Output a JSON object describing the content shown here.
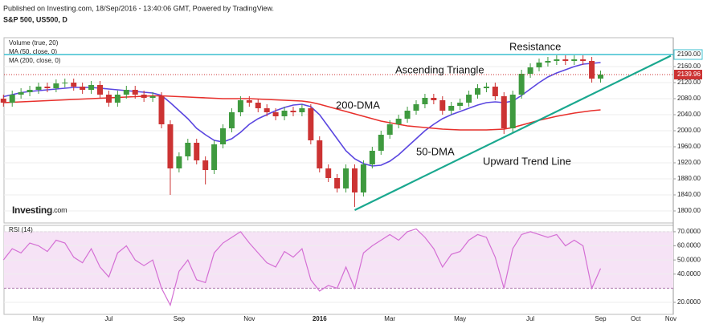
{
  "header": {
    "published": "Published on Investing.com, 18/Sep/2016 - 13:40:06 GMT, Powered by TradingView.",
    "symbol": "S&P 500, US500, D"
  },
  "logo": {
    "name": "Investing",
    "suffix": ".com"
  },
  "chart_data": [
    {
      "type": "candlestick",
      "indicators_label": "Volume (true, 20)",
      "up_color": "#3f9a3f",
      "down_color": "#cc3333",
      "open": [
        2080,
        2070,
        2090,
        2096,
        2102,
        2110,
        2106,
        2118,
        2120,
        2110,
        2102,
        2114,
        2090,
        2070,
        2090,
        2102,
        2090,
        2082,
        2086,
        2016,
        1906,
        1936,
        1970,
        1926,
        1902,
        1966,
        2006,
        2046,
        2076,
        2070,
        2056,
        2046,
        2036,
        2050,
        2046,
        2056,
        1976,
        1906,
        1882,
        1856,
        1906,
        1846,
        1916,
        1950,
        1990,
        2016,
        2030,
        2050,
        2066,
        2082,
        2076,
        2050,
        2062,
        2070,
        2090,
        2106,
        2110,
        2086,
        2006,
        2090,
        2142,
        2158,
        2170,
        2174,
        2178,
        2174,
        2178,
        2174,
        2130
      ],
      "high": [
        2090,
        2100,
        2106,
        2112,
        2120,
        2120,
        2128,
        2130,
        2130,
        2120,
        2124,
        2124,
        2100,
        2100,
        2112,
        2112,
        2100,
        2096,
        2096,
        2026,
        1946,
        1980,
        1980,
        1936,
        1976,
        2016,
        2056,
        2086,
        2086,
        2080,
        2066,
        2056,
        2060,
        2060,
        2066,
        2066,
        1986,
        1916,
        1892,
        1916,
        1916,
        1926,
        1960,
        2000,
        2026,
        2040,
        2060,
        2076,
        2092,
        2092,
        2086,
        2072,
        2080,
        2100,
        2116,
        2120,
        2120,
        2096,
        2100,
        2152,
        2168,
        2180,
        2184,
        2188,
        2188,
        2188,
        2188,
        2184,
        2150
      ],
      "low": [
        2060,
        2060,
        2080,
        2086,
        2092,
        2096,
        2096,
        2108,
        2100,
        2092,
        2092,
        2080,
        2060,
        2060,
        2080,
        2080,
        2072,
        2072,
        2006,
        1840,
        1896,
        1926,
        1916,
        1866,
        1892,
        1956,
        1996,
        2036,
        2060,
        2046,
        2036,
        2026,
        2026,
        2036,
        2036,
        1966,
        1896,
        1872,
        1846,
        1846,
        1810,
        1836,
        1906,
        1940,
        1980,
        2006,
        2020,
        2040,
        2056,
        2066,
        2040,
        2040,
        2052,
        2060,
        2080,
        2096,
        2076,
        1992,
        1996,
        2080,
        2132,
        2148,
        2160,
        2164,
        2164,
        2164,
        2164,
        2120,
        2120
      ],
      "close": [
        2070,
        2090,
        2096,
        2102,
        2110,
        2106,
        2118,
        2120,
        2110,
        2102,
        2114,
        2090,
        2070,
        2090,
        2102,
        2090,
        2082,
        2086,
        2016,
        1906,
        1936,
        1970,
        1926,
        1902,
        1966,
        2006,
        2046,
        2076,
        2070,
        2056,
        2046,
        2036,
        2050,
        2046,
        2056,
        1976,
        1906,
        1882,
        1856,
        1906,
        1846,
        1916,
        1950,
        1990,
        2016,
        2030,
        2050,
        2066,
        2082,
        2076,
        2050,
        2062,
        2070,
        2090,
        2106,
        2110,
        2086,
        2006,
        2090,
        2142,
        2158,
        2170,
        2174,
        2178,
        2174,
        2178,
        2174,
        2130,
        2139.96
      ],
      "series": [
        {
          "name": "MA (50, close, 0)",
          "color": "#5b47e0",
          "values": [
            2085,
            2090,
            2095,
            2098,
            2100,
            2102,
            2104,
            2106,
            2108,
            2108,
            2108,
            2106,
            2104,
            2102,
            2100,
            2098,
            2096,
            2094,
            2088,
            2070,
            2050,
            2030,
            2006,
            1990,
            1976,
            1972,
            1980,
            1996,
            2016,
            2030,
            2040,
            2050,
            2058,
            2064,
            2066,
            2060,
            2040,
            2010,
            1980,
            1950,
            1930,
            1918,
            1912,
            1914,
            1924,
            1940,
            1960,
            1980,
            2000,
            2016,
            2030,
            2040,
            2048,
            2056,
            2064,
            2070,
            2072,
            2070,
            2074,
            2088,
            2104,
            2120,
            2134,
            2144,
            2152,
            2160,
            2166,
            2168,
            2170
          ]
        },
        {
          "name": "MA (200, close, 0)",
          "color": "#e8302c",
          "values": [
            2070,
            2071,
            2072,
            2073,
            2074,
            2075,
            2076,
            2077,
            2078,
            2079,
            2080,
            2081,
            2082,
            2083,
            2084,
            2085,
            2086,
            2087,
            2087,
            2086,
            2085,
            2084,
            2083,
            2082,
            2081,
            2080,
            2080,
            2080,
            2080,
            2079,
            2078,
            2077,
            2076,
            2075,
            2074,
            2071,
            2066,
            2060,
            2054,
            2048,
            2042,
            2036,
            2030,
            2024,
            2020,
            2016,
            2012,
            2010,
            2008,
            2006,
            2004,
            2003,
            2002,
            2002,
            2002,
            2002,
            2003,
            2004,
            2008,
            2014,
            2020,
            2026,
            2031,
            2036,
            2040,
            2044,
            2047,
            2050,
            2052
          ]
        }
      ],
      "ylim": [
        1770,
        2232
      ],
      "yticks": [
        {
          "value": 1800,
          "label": "1800.00"
        },
        {
          "value": 1840,
          "label": "1840.00"
        },
        {
          "value": 1880,
          "label": "1880.00"
        },
        {
          "value": 1920,
          "label": "1920.00"
        },
        {
          "value": 1960,
          "label": "1960.00"
        },
        {
          "value": 2000,
          "label": "2000.00"
        },
        {
          "value": 2040,
          "label": "2040.00"
        },
        {
          "value": 2080,
          "label": "2080.00"
        },
        {
          "value": 2120,
          "label": "2120.00"
        },
        {
          "value": 2160,
          "label": "2160.00"
        }
      ],
      "resistance": {
        "value": 2190,
        "label": "2190.00",
        "color": "#3bbfcf"
      },
      "trend_line": {
        "points": [
          [
            40,
            1802
          ],
          [
            76,
            2187
          ]
        ],
        "color": "#1aa88f"
      },
      "annotations": [
        "Resistance",
        "Ascending Triangle",
        "200-DMA",
        "50-DMA",
        "Upward Trend Line"
      ],
      "grid": true
    },
    {
      "type": "line",
      "title": "RSI (14)",
      "categories": [
        null,
        null,
        null,
        null,
        "May",
        null,
        null,
        null,
        null,
        null,
        null,
        null,
        "Jul",
        null,
        null,
        null,
        null,
        null,
        null,
        null,
        "Sep",
        null,
        null,
        null,
        null,
        null,
        null,
        null,
        "Nov",
        null,
        null,
        null,
        null,
        null,
        null,
        null,
        "2016",
        null,
        null,
        null,
        null,
        null,
        null,
        null,
        "Mar",
        null,
        null,
        null,
        null,
        null,
        null,
        null,
        "May",
        null,
        null,
        null,
        null,
        null,
        null,
        null,
        "Jul",
        null,
        null,
        null,
        null,
        null,
        null,
        null,
        "Sep",
        null,
        null,
        null,
        "Oct",
        null,
        null,
        null,
        "Nov"
      ],
      "values": [
        50,
        58,
        55,
        62,
        60,
        56,
        64,
        62,
        52,
        48,
        58,
        45,
        38,
        55,
        60,
        50,
        46,
        50,
        30,
        18,
        42,
        50,
        36,
        34,
        55,
        62,
        66,
        70,
        62,
        55,
        48,
        45,
        56,
        52,
        58,
        36,
        28,
        32,
        30,
        45,
        30,
        55,
        60,
        64,
        68,
        64,
        70,
        72,
        66,
        58,
        45,
        54,
        56,
        64,
        68,
        66,
        52,
        30,
        58,
        68,
        70,
        68,
        66,
        68,
        60,
        64,
        60,
        30,
        44,
        null,
        null,
        null,
        null,
        null,
        null,
        null,
        null
      ],
      "color": "#d46fd4",
      "band": [
        30,
        70
      ],
      "band_color": "#f6e3f6",
      "ylim": [
        11.5,
        74.5
      ],
      "yticks": [
        {
          "value": 20,
          "label": "20.0000"
        },
        {
          "value": 40,
          "label": "40.0000"
        },
        {
          "value": 50,
          "label": "50.0000"
        },
        {
          "value": 60,
          "label": "60.0000"
        },
        {
          "value": 70,
          "label": "70.0000"
        }
      ],
      "grid": true
    }
  ]
}
